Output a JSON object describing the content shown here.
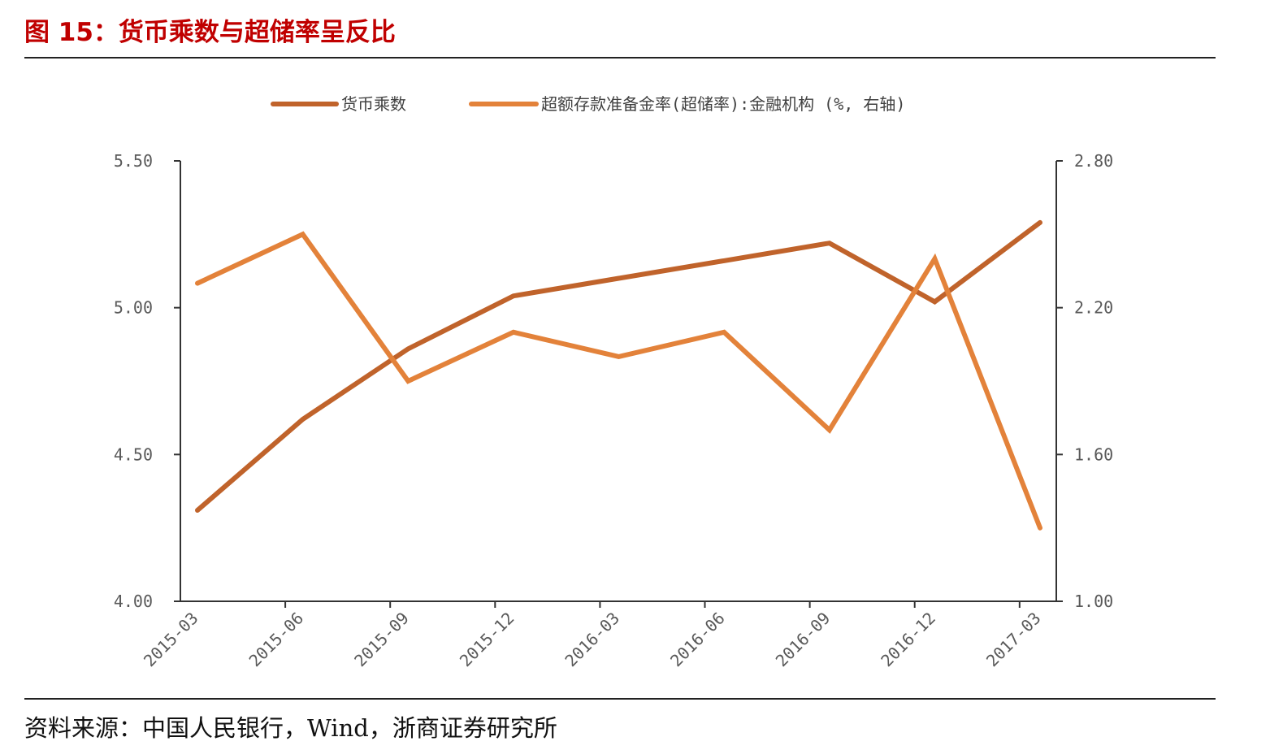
{
  "header": {
    "title": "图 15：货币乘数与超储率呈反比"
  },
  "footer": {
    "source": "资料来源：中国人民银行，Wind，浙商证券研究所"
  },
  "colors": {
    "title": "#c00000",
    "series_money": "#c0632b",
    "series_reserve": "#e3823a",
    "axis": "#333333"
  },
  "chart_data": {
    "type": "line",
    "categories": [
      "2015-03",
      "2015-06",
      "2015-09",
      "2015-12",
      "2016-03",
      "2016-06",
      "2016-09",
      "2016-12",
      "2017-03"
    ],
    "x_tick_labels": [
      "2015-03",
      "2015-06",
      "2015-09",
      "2015-12",
      "2016-03",
      "2016-06",
      "2016-09",
      "2016-12",
      "2017-03"
    ],
    "series": [
      {
        "name": "货币乘数",
        "axis": "left",
        "color": "#c0632b",
        "values": [
          4.31,
          4.62,
          4.86,
          5.04,
          5.1,
          5.16,
          5.22,
          5.02,
          5.29
        ]
      },
      {
        "name": "超额存款准备金率(超储率):金融机构 (%, 右轴)",
        "axis": "right",
        "color": "#e3823a",
        "values": [
          2.3,
          2.5,
          1.9,
          2.1,
          2.0,
          2.1,
          1.7,
          2.4,
          1.3
        ]
      }
    ],
    "y_left": {
      "ylim": [
        4.0,
        5.5
      ],
      "tick_labels": [
        "4.00",
        "4.50",
        "5.00",
        "5.50"
      ]
    },
    "y_right": {
      "ylim": [
        1.0,
        2.8
      ],
      "tick_labels": [
        "1.00",
        "1.60",
        "2.20",
        "2.80"
      ]
    },
    "grid": false,
    "legend_position": "top-center"
  }
}
